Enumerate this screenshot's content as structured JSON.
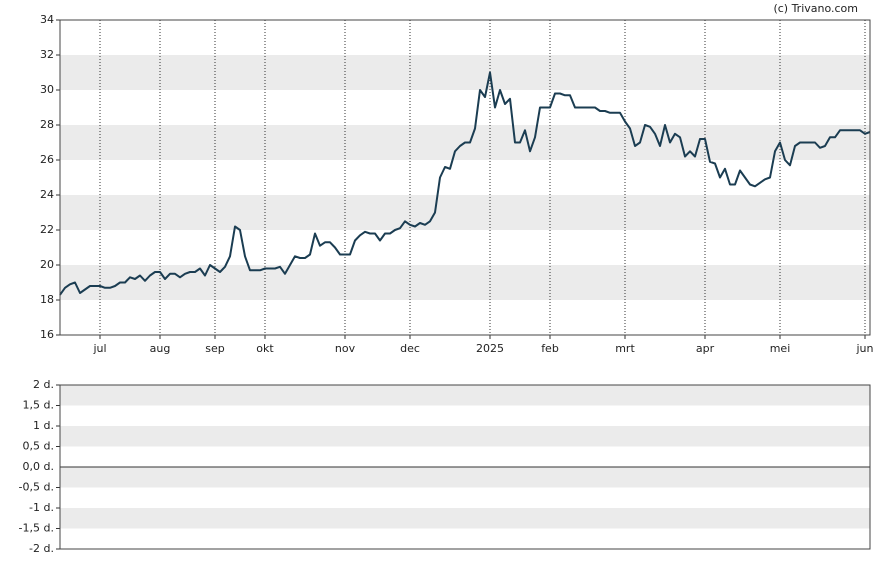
{
  "chart_data": [
    {
      "type": "line",
      "credit": "(c) Trivano.com",
      "categories": [
        null,
        null,
        null,
        null,
        null,
        null,
        null,
        null,
        "jul",
        null,
        null,
        null,
        null,
        null,
        null,
        null,
        null,
        null,
        null,
        null,
        "aug",
        null,
        null,
        null,
        null,
        null,
        null,
        null,
        null,
        null,
        null,
        "sep",
        null,
        null,
        null,
        null,
        null,
        null,
        null,
        null,
        null,
        "okt",
        null,
        null,
        null,
        null,
        null,
        null,
        null,
        null,
        null,
        null,
        null,
        null,
        null,
        null,
        null,
        "nov",
        null,
        null,
        null,
        null,
        null,
        null,
        null,
        null,
        null,
        null,
        null,
        null,
        "dec",
        null,
        null,
        null,
        null,
        null,
        null,
        null,
        null,
        null,
        null,
        null,
        null,
        null,
        null,
        null,
        "2025",
        null,
        null,
        null,
        null,
        null,
        null,
        null,
        null,
        null,
        null,
        null,
        "feb",
        null,
        null,
        null,
        null,
        null,
        null,
        null,
        null,
        null,
        null,
        null,
        null,
        null,
        null,
        "mrt",
        null,
        null,
        null,
        null,
        null,
        null,
        null,
        null,
        null,
        null,
        null,
        null,
        null,
        null,
        null,
        "apr",
        null,
        null,
        null,
        null,
        null,
        null,
        null,
        null,
        null,
        null,
        null,
        null,
        null,
        null,
        "mei",
        null,
        null,
        null,
        null,
        null,
        null,
        null,
        null,
        null,
        null,
        null,
        null,
        null,
        null,
        null,
        null,
        "jun",
        null
      ],
      "series": [
        {
          "color": "#1b3d52",
          "values": [
            18.3,
            18.7,
            18.9,
            19.0,
            18.4,
            18.6,
            18.8,
            18.8,
            18.8,
            18.7,
            18.7,
            18.8,
            19.0,
            19.0,
            19.3,
            19.2,
            19.4,
            19.1,
            19.4,
            19.6,
            19.6,
            19.2,
            19.5,
            19.5,
            19.3,
            19.5,
            19.6,
            19.6,
            19.8,
            19.4,
            20.0,
            19.8,
            19.6,
            19.9,
            20.5,
            22.2,
            22.0,
            20.5,
            19.7,
            19.7,
            19.7,
            19.8,
            19.8,
            19.8,
            19.9,
            19.5,
            20.0,
            20.5,
            20.4,
            20.4,
            20.6,
            21.8,
            21.1,
            21.3,
            21.3,
            21.0,
            20.6,
            20.6,
            20.6,
            21.4,
            21.7,
            21.9,
            21.8,
            21.8,
            21.4,
            21.8,
            21.8,
            22.0,
            22.1,
            22.5,
            22.3,
            22.2,
            22.4,
            22.3,
            22.5,
            23.0,
            25.0,
            25.6,
            25.5,
            26.5,
            26.8,
            27.0,
            27.0,
            27.8,
            30.0,
            29.6,
            31.0,
            29.0,
            30.0,
            29.2,
            29.5,
            27.0,
            27.0,
            27.7,
            26.5,
            27.3,
            29.0,
            29.0,
            29.0,
            29.8,
            29.8,
            29.7,
            29.7,
            29.0,
            29.0,
            29.0,
            29.0,
            29.0,
            28.8,
            28.8,
            28.7,
            28.7,
            28.7,
            28.2,
            27.8,
            26.8,
            27.0,
            28.0,
            27.9,
            27.5,
            26.8,
            28.0,
            27.0,
            27.5,
            27.3,
            26.2,
            26.5,
            26.2,
            27.2,
            27.2,
            25.9,
            25.8,
            25.0,
            25.5,
            24.6,
            24.6,
            25.4,
            25.0,
            24.6,
            24.5,
            24.7,
            24.9,
            25.0,
            26.5,
            27.0,
            26.0,
            25.7,
            26.8,
            27.0,
            27.0,
            27.0,
            27.0,
            26.7,
            26.8,
            27.3,
            27.3,
            27.7,
            27.7,
            27.7,
            27.7,
            27.7,
            27.5,
            27.6
          ]
        }
      ],
      "ylim": [
        16,
        34
      ],
      "yticks": [
        16,
        18,
        20,
        22,
        24,
        26,
        28,
        30,
        32,
        34
      ],
      "grid": true
    },
    {
      "type": "line",
      "series": [],
      "ylim": [
        -2,
        2
      ],
      "yticks": [
        {
          "value": -2,
          "label": "-2 d."
        },
        {
          "value": -1.5,
          "label": "-1,5 d."
        },
        {
          "value": -1,
          "label": "-1 d."
        },
        {
          "value": -0.5,
          "label": "-0,5 d."
        },
        {
          "value": 0,
          "label": "0,0 d."
        },
        {
          "value": 0.5,
          "label": "0,5 d."
        },
        {
          "value": 1,
          "label": "1 d."
        },
        {
          "value": 1.5,
          "label": "1,5 d."
        },
        {
          "value": 2,
          "label": "2 d."
        }
      ],
      "grid": true
    }
  ]
}
